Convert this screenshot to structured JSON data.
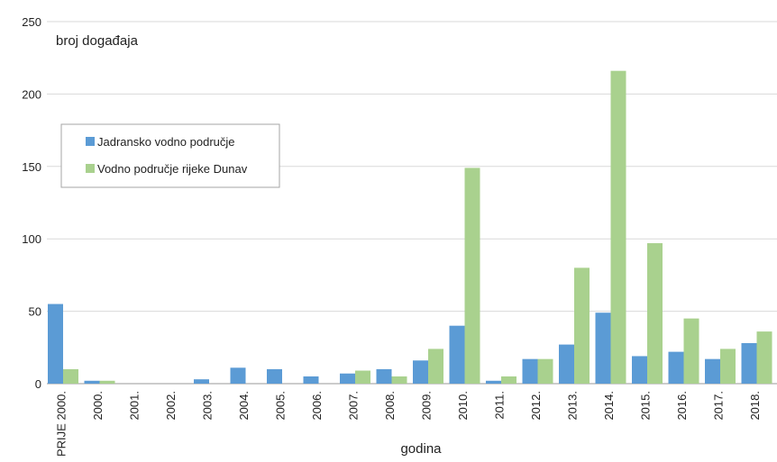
{
  "chart_data": {
    "type": "bar",
    "title": "",
    "ylabel": "broj događaja",
    "xlabel": "godina",
    "ylim": [
      0,
      250
    ],
    "yticks": [
      0,
      50,
      100,
      150,
      200,
      250
    ],
    "grid": true,
    "legend_position": "upper-left",
    "categories": [
      "PRIJE 2000.",
      "2000.",
      "2001.",
      "2002.",
      "2003.",
      "2004.",
      "2005.",
      "2006.",
      "2007.",
      "2008.",
      "2009.",
      "2010.",
      "2011.",
      "2012.",
      "2013.",
      "2014.",
      "2015.",
      "2016.",
      "2017.",
      "2018."
    ],
    "series": [
      {
        "name": "Jadransko vodno područje",
        "color": "#5b9bd5",
        "values": [
          55,
          2,
          0,
          0,
          3,
          11,
          10,
          5,
          7,
          10,
          16,
          40,
          2,
          17,
          27,
          49,
          19,
          22,
          17,
          28
        ]
      },
      {
        "name": "Vodno područje rijeke Dunav",
        "color": "#a9d18e",
        "values": [
          10,
          2,
          0,
          0,
          0,
          0,
          0,
          0,
          9,
          5,
          24,
          149,
          5,
          17,
          80,
          216,
          97,
          45,
          24,
          36
        ]
      }
    ]
  }
}
